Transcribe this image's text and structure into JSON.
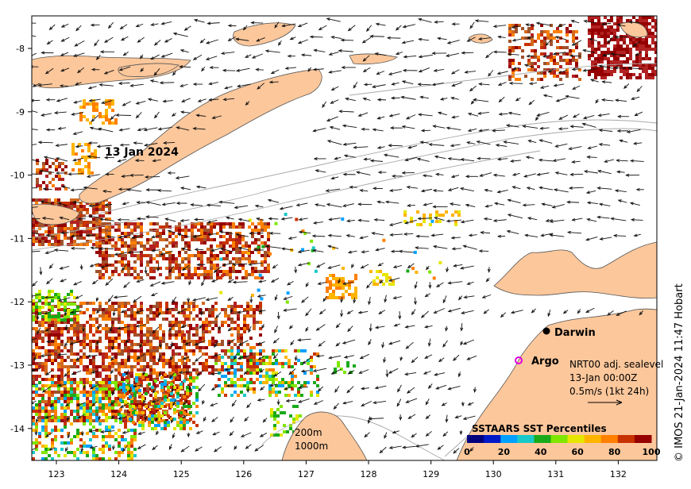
{
  "map": {
    "date_label": "13 Jan 2024",
    "x_ticks": [
      "123",
      "124",
      "125",
      "126",
      "127",
      "128",
      "129",
      "130",
      "131",
      "132"
    ],
    "y_ticks": [
      "-8",
      "-9",
      "-10",
      "-11",
      "-12",
      "-13",
      "-14"
    ],
    "places": {
      "darwin": "Darwin",
      "argo": "Argo"
    },
    "isobaths": [
      "200m",
      "1000m"
    ],
    "legend": {
      "line1": "NRT00 adj. sealevel",
      "line2": "13-Jan 00:00Z",
      "line3": "0.5m/s (1kt 24h)"
    },
    "colorbar": {
      "title": "SSTAARS SST Percentiles",
      "ticks": [
        "0",
        "20",
        "40",
        "60",
        "80",
        "100"
      ],
      "colors": [
        "#00007f",
        "#0019c8",
        "#00a0ff",
        "#19c8c8",
        "#19aa19",
        "#7fe600",
        "#e6e600",
        "#ffb400",
        "#ff7f00",
        "#c83200",
        "#960000"
      ]
    },
    "credit": "© IMOS 21-Jan-2024 11:47 Hobart",
    "colors": {
      "land": "#fcc79b",
      "ocean": "#ffffff",
      "argo_marker": "#e100e1"
    }
  }
}
